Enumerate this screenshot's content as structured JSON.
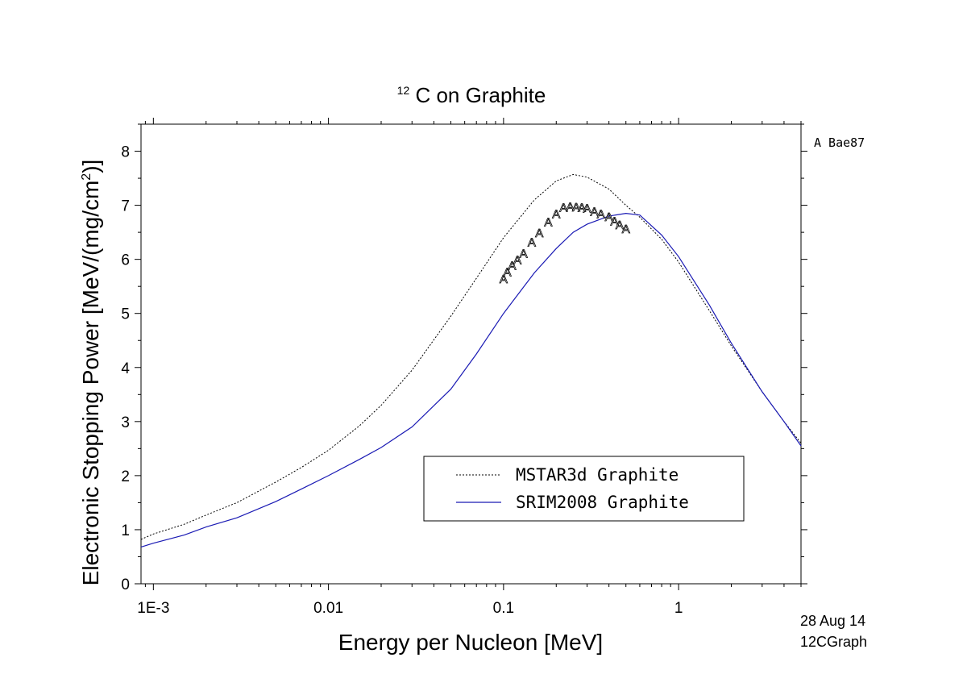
{
  "chart_data": {
    "type": "line",
    "title": {
      "superscript": "12",
      "text": "C on Graphite"
    },
    "xlabel": "Energy per Nucleon [MeV]",
    "ylabel": {
      "text": "Electronic Stopping Power [MeV/(mg/cm",
      "superscript": "2",
      "suffix": ")]"
    },
    "x_scale": "log",
    "xlim": [
      0.00085,
      5.0
    ],
    "ylim": [
      0,
      8.5
    ],
    "x_ticks": [
      {
        "value": 0.001,
        "label": "1E-3"
      },
      {
        "value": 0.01,
        "label": "0.01"
      },
      {
        "value": 0.1,
        "label": "0.1"
      },
      {
        "value": 1,
        "label": "1"
      }
    ],
    "y_ticks": [
      {
        "value": 0,
        "label": "0"
      },
      {
        "value": 1,
        "label": "1"
      },
      {
        "value": 2,
        "label": "2"
      },
      {
        "value": 3,
        "label": "3"
      },
      {
        "value": 4,
        "label": "4"
      },
      {
        "value": 5,
        "label": "5"
      },
      {
        "value": 6,
        "label": "6"
      },
      {
        "value": 7,
        "label": "7"
      },
      {
        "value": 8,
        "label": "8"
      }
    ],
    "grid": false,
    "series": [
      {
        "name": "MSTAR3d Graphite",
        "style": "dotted",
        "color": "#000000",
        "x": [
          0.00085,
          0.001,
          0.0015,
          0.002,
          0.003,
          0.005,
          0.007,
          0.01,
          0.015,
          0.02,
          0.03,
          0.05,
          0.07,
          0.1,
          0.15,
          0.2,
          0.25,
          0.3,
          0.4,
          0.5,
          0.6,
          0.8,
          1.0,
          1.5,
          2.0,
          3.0,
          4.0,
          5.0
        ],
        "y": [
          0.82,
          0.92,
          1.1,
          1.27,
          1.5,
          1.88,
          2.15,
          2.47,
          2.92,
          3.3,
          3.95,
          4.95,
          5.65,
          6.4,
          7.1,
          7.45,
          7.57,
          7.52,
          7.3,
          7.0,
          6.78,
          6.37,
          5.95,
          5.05,
          4.4,
          3.55,
          3.0,
          2.6
        ]
      },
      {
        "name": "SRIM2008 Graphite",
        "style": "solid",
        "color": "#1a1ab4",
        "x": [
          0.00085,
          0.001,
          0.0015,
          0.002,
          0.003,
          0.005,
          0.007,
          0.01,
          0.015,
          0.02,
          0.03,
          0.05,
          0.07,
          0.1,
          0.15,
          0.2,
          0.25,
          0.3,
          0.4,
          0.5,
          0.6,
          0.8,
          1.0,
          1.5,
          2.0,
          3.0,
          4.0,
          5.0
        ],
        "y": [
          0.68,
          0.75,
          0.9,
          1.05,
          1.22,
          1.52,
          1.75,
          2.0,
          2.3,
          2.52,
          2.9,
          3.6,
          4.25,
          5.0,
          5.75,
          6.2,
          6.5,
          6.65,
          6.8,
          6.85,
          6.82,
          6.45,
          6.05,
          5.15,
          4.45,
          3.55,
          3.0,
          2.55
        ]
      }
    ],
    "experimental": {
      "name": "Bae87",
      "marker": "A",
      "x": [
        0.1,
        0.105,
        0.112,
        0.12,
        0.13,
        0.145,
        0.16,
        0.18,
        0.2,
        0.22,
        0.24,
        0.26,
        0.28,
        0.3,
        0.33,
        0.36,
        0.4,
        0.43,
        0.46,
        0.5
      ],
      "y": [
        5.65,
        5.78,
        5.9,
        6.0,
        6.12,
        6.33,
        6.5,
        6.7,
        6.85,
        6.97,
        6.99,
        6.98,
        6.97,
        6.96,
        6.9,
        6.85,
        6.8,
        6.72,
        6.65,
        6.58
      ]
    },
    "legend": {
      "placement": "lower-center",
      "entries": [
        "MSTAR3d Graphite",
        "SRIM2008 Graphite"
      ]
    },
    "annotations": {
      "data_key": "A Bae87",
      "date": "28 Aug 14",
      "file_id": "12CGraph"
    }
  }
}
